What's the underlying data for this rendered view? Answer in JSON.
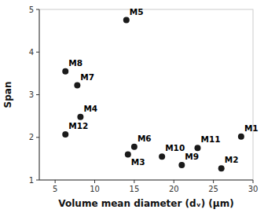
{
  "chart_data": {
    "type": "scatter",
    "x": [
      28.5,
      26.0,
      14.2,
      8.2,
      14.0,
      15.0,
      7.8,
      6.3,
      21.0,
      18.5,
      23.0,
      6.3
    ],
    "values": [
      2.02,
      1.27,
      1.6,
      2.48,
      4.75,
      1.78,
      3.22,
      3.55,
      1.35,
      1.55,
      1.75,
      2.07
    ],
    "labels": [
      "M1",
      "M2",
      "M3",
      "M4",
      "M5",
      "M6",
      "M7",
      "M8",
      "M9",
      "M10",
      "M11",
      "M12"
    ],
    "color": "#1a1a1a",
    "xlabel": "Volume mean diameter (dᵥ) (μm)",
    "ylabel": "Span",
    "xlim": [
      3,
      30
    ],
    "ylim": [
      1,
      5
    ],
    "xticks": [
      5,
      10,
      15,
      20,
      25,
      30
    ],
    "yticks": [
      1,
      2,
      3,
      4,
      5
    ],
    "grid": false
  }
}
